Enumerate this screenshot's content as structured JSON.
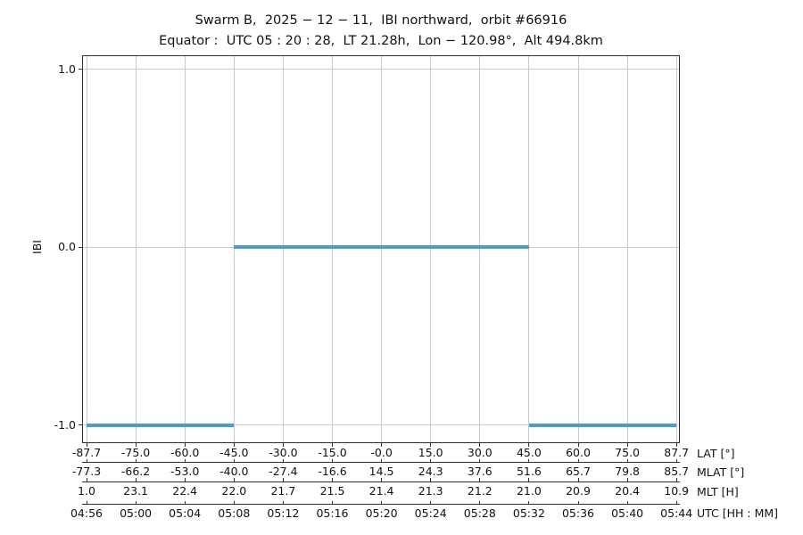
{
  "title": "Swarm B,  2025 − 12 − 11,  IBI northward,  orbit #66916",
  "subtitle": "Equator :  UTC 05 : 20 : 28,  LT 21.28h,  Lon − 120.98°,  Alt 494.8km",
  "colors": {
    "line": "#4e9ac9",
    "grid": "#cbcbcb",
    "spine": "#2e2e2e",
    "text": "#111111",
    "background": "#ffffff"
  },
  "chart_data": {
    "type": "line",
    "title": "Swarm B, 2025 − 12 − 11, IBI northward, orbit #66916",
    "subtitle": "Equator : UTC 05 : 20 : 28, LT 21.28h, Lon − 120.98°, Alt 494.8km",
    "ylabel": "IBI",
    "grid": true,
    "yticks": [
      {
        "value": 1.0,
        "label": "1.0"
      },
      {
        "value": 0.0,
        "label": "0.0"
      },
      {
        "value": -1.0,
        "label": "-1.0"
      }
    ],
    "ylim": [
      -1.1,
      1.08
    ],
    "series": [
      {
        "name": "IBI",
        "color": "#4e9ac9",
        "segments": [
          {
            "utc_from": "04:56",
            "utc_to": "05:08",
            "tick_from": 0,
            "tick_to": 3,
            "ibi": -1
          },
          {
            "utc_from": "05:08",
            "utc_to": "05:32",
            "tick_from": 3,
            "tick_to": 9,
            "ibi": 0
          },
          {
            "utc_from": "05:32",
            "utc_to": "05:44",
            "tick_from": 9,
            "tick_to": 12,
            "ibi": -1
          }
        ]
      }
    ],
    "x_axes": [
      {
        "label": "LAT [°]",
        "ticks": [
          "-87.7",
          "-75.0",
          "-60.0",
          "-45.0",
          "-30.0",
          "-15.0",
          "-0.0",
          "15.0",
          "30.0",
          "45.0",
          "60.0",
          "75.0",
          "87.7"
        ]
      },
      {
        "label": "MLAT [°]",
        "ticks": [
          "-77.3",
          "-66.2",
          "-53.0",
          "-40.0",
          "-27.4",
          "-16.6",
          "14.5",
          "24.3",
          "37.6",
          "51.6",
          "65.7",
          "79.8",
          "85.7"
        ]
      },
      {
        "label": "MLT [H]",
        "ticks": [
          "1.0",
          "23.1",
          "22.4",
          "22.0",
          "21.7",
          "21.5",
          "21.4",
          "21.3",
          "21.2",
          "21.0",
          "20.9",
          "20.4",
          "10.9"
        ]
      },
      {
        "label": "UTC [HH : MM]",
        "ticks": [
          "04:56",
          "05:00",
          "05:04",
          "05:08",
          "05:12",
          "05:16",
          "05:20",
          "05:24",
          "05:28",
          "05:32",
          "05:36",
          "05:40",
          "05:44"
        ]
      }
    ]
  }
}
